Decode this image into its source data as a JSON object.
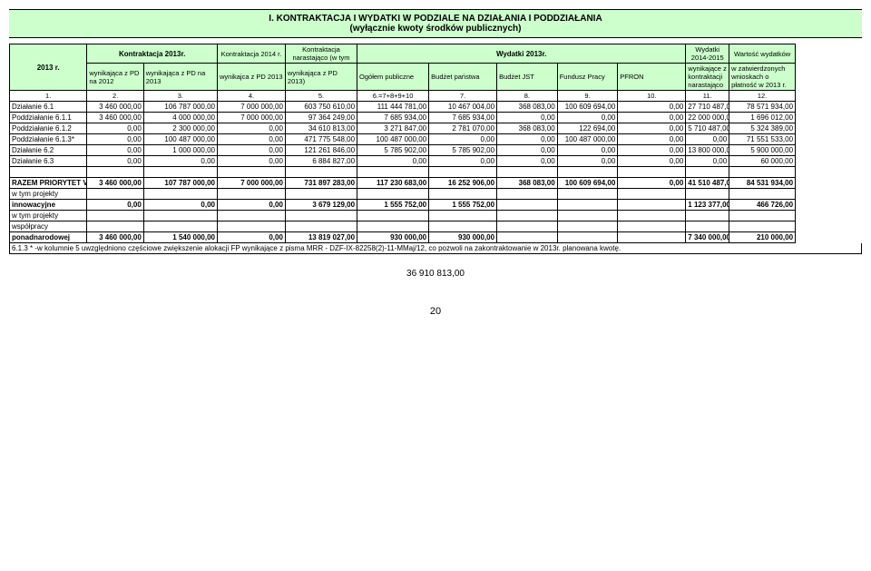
{
  "title": {
    "line1": "I. KONTRAKTACJA I WYDATKI W PODZIALE NA DZIAŁANIA I PODDZIAŁANIA",
    "line2": "(wyłącznie kwoty środków publicznych)"
  },
  "colors": {
    "header_bg": "#ccffcc",
    "border": "#000000"
  },
  "headers": {
    "c0": "2013 r.",
    "kontraktacja_2013": "Kontraktacja 2013r.",
    "c1": "wynikająca z PD na 2012",
    "c2": "wynikająca z PD  na 2013",
    "c3_top": "Kontraktacja 2014 r.",
    "c3": "wynikajca z PD 2013",
    "c4_top": "Kontraktacja narastająco (w tym",
    "c4": "wynikająca z PD 2013)",
    "wydatki_2013": "Wydatki 2013r.",
    "c5": "Ogółem publiczne",
    "c6": "Budżet państwa",
    "c7": "Budżet JST",
    "c8": "Fundusz Pracy",
    "c9": "PFRON",
    "c10_top": "Wydatki 2014-2015",
    "c10": "wynikające z kontraktacji narastająco",
    "c11_top": "Wartość wydatków",
    "c11": "w zatwierdzonych wnioskach o płatność w 2013 r."
  },
  "numrow": {
    "n0": "1.",
    "n1": "2.",
    "n2": "3.",
    "n3": "4.",
    "n4": "5.",
    "n5": "6.=7+8+9+10",
    "n6": "7.",
    "n7": "8.",
    "n8": "9.",
    "n9": "10.",
    "n10": "11.",
    "n11": "12."
  },
  "rows": [
    {
      "label": "Działanie 6.1",
      "v": [
        "3 460 000,00",
        "106 787 000,00",
        "7 000 000,00",
        "603 750 610,00",
        "111 444 781,00",
        "10 467 004,00",
        "368 083,00",
        "100 609 694,00",
        "0,00",
        "27 710 487,00",
        "78 571 934,00"
      ]
    },
    {
      "label": "Poddziałanie 6.1.1",
      "v": [
        "3 460 000,00",
        "4 000 000,00",
        "7 000 000,00",
        "97 364 249,00",
        "7 685 934,00",
        "7 685 934,00",
        "0,00",
        "0,00",
        "0,00",
        "22 000 000,00",
        "1 696 012,00"
      ]
    },
    {
      "label": "Poddziałanie 6.1.2",
      "v": [
        "0,00",
        "2 300 000,00",
        "0,00",
        "34 610 813,00",
        "3 271 847,00",
        "2 781 070,00",
        "368 083,00",
        "122 694,00",
        "0,00",
        "5 710 487,00",
        "5 324 389,00"
      ]
    },
    {
      "label": "Poddziałanie 6.1.3*",
      "v": [
        "0,00",
        "100 487 000,00",
        "0,00",
        "471 775 548,00",
        "100 487 000,00",
        "0,00",
        "0,00",
        "100 487 000,00",
        "0,00",
        "0,00",
        "71 551 533,00"
      ]
    },
    {
      "label": "Działanie 6.2",
      "v": [
        "0,00",
        "1 000 000,00",
        "0,00",
        "121 261 846,00",
        "5 785 902,00",
        "5 785 902,00",
        "0,00",
        "0,00",
        "0,00",
        "13 800 000,00",
        "5 900 000,00"
      ]
    },
    {
      "label": "Działanie 6.3",
      "v": [
        "0,00",
        "0,00",
        "0,00",
        "6 884 827,00",
        "0,00",
        "0,00",
        "0,00",
        "0,00",
        "0,00",
        "0,00",
        "60 000,00"
      ]
    }
  ],
  "blank_row": {
    "label": "",
    "v": [
      "",
      "",
      "",
      "",
      "",
      "",
      "",
      "",
      "",
      "",
      ""
    ]
  },
  "total_row": {
    "label": "RAZEM PRIORYTET VI",
    "v": [
      "3 460 000,00",
      "107 787 000,00",
      "7 000 000,00",
      "731 897 283,00",
      "117 230 683,00",
      "16 252 906,00",
      "368 083,00",
      "100 609 694,00",
      "0,00",
      "41 510 487,00",
      "84 531 934,00"
    ]
  },
  "innow_label_1": "w tym projekty",
  "innow_row": {
    "label": "innowacyjne",
    "v": [
      "0,00",
      "0,00",
      "0,00",
      "3 679 129,00",
      "1 555 752,00",
      "1 555 752,00",
      "",
      "",
      "",
      "1 123 377,00",
      "466 726,00"
    ]
  },
  "wspol_label_1": "w tym projekty",
  "wspol_label_2": "współpracy",
  "wspol_row": {
    "label": "ponadnarodowej",
    "v": [
      "3 460 000,00",
      "1 540 000,00",
      "0,00",
      "13 819 027,00",
      "930 000,00",
      "930 000,00",
      "",
      "",
      "",
      "7 340 000,00",
      "210 000,00"
    ]
  },
  "footnote": "6.1.3 * -w kolumnie 5 uwzględniono częściowe zwiększenie alokacji FP wynikające z pisma MRR - DZF-IX-82258(2)-11-MMaj/12, co pozwoli na zakontraktowanie w 2013r. planowana kwotę.",
  "bottom_value": "36 910 813,00",
  "page_number": "20"
}
